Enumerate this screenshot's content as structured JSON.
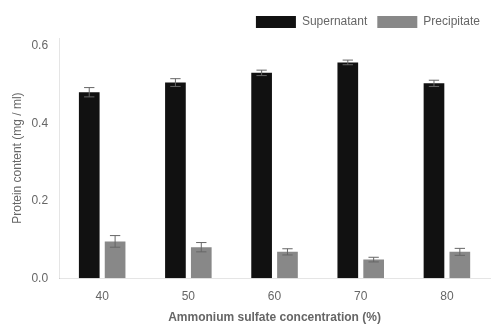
{
  "chart_data": {
    "type": "bar",
    "categories": [
      "40",
      "50",
      "60",
      "70",
      "80"
    ],
    "series": [
      {
        "name": "Supernatant",
        "color": "#111111",
        "values": [
          0.48,
          0.505,
          0.53,
          0.557,
          0.503
        ],
        "errors": [
          0.012,
          0.01,
          0.007,
          0.006,
          0.008
        ]
      },
      {
        "name": "Precipitate",
        "color": "#888888",
        "values": [
          0.095,
          0.08,
          0.068,
          0.048,
          0.068
        ],
        "errors": [
          0.015,
          0.012,
          0.008,
          0.006,
          0.009
        ]
      }
    ],
    "xlabel": "Ammonium sulfate concentration (%)",
    "ylabel": "Protein content (mg / ml)",
    "ylim": [
      0,
      0.62
    ],
    "yticks": [
      {
        "value": 0,
        "label": "0.0"
      },
      0.2,
      0.4,
      0.6
    ],
    "grid": false,
    "legend": "upper right"
  }
}
